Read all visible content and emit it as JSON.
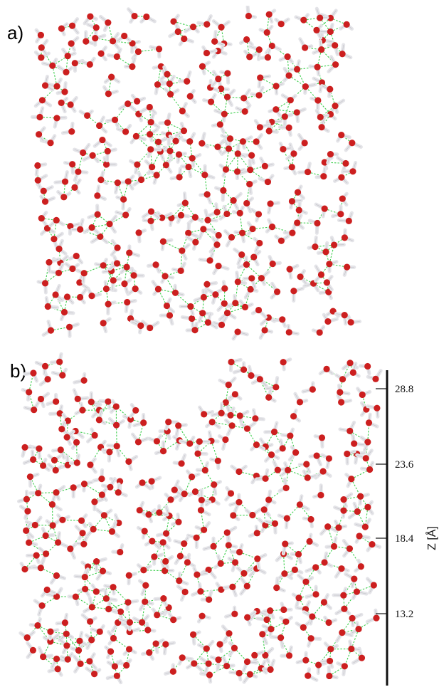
{
  "figure": {
    "panel_a_label": "a)",
    "panel_b_label": "b)",
    "colors": {
      "oxygen": "#cc1f1f",
      "hydrogen": "#e4e4e8",
      "hbond": "#3fcf4f",
      "axis": "#111111"
    },
    "z_axis": {
      "title": "Z [Å]",
      "ticks": [
        "28.8",
        "23.6",
        "18.4",
        "13.2"
      ]
    }
  }
}
